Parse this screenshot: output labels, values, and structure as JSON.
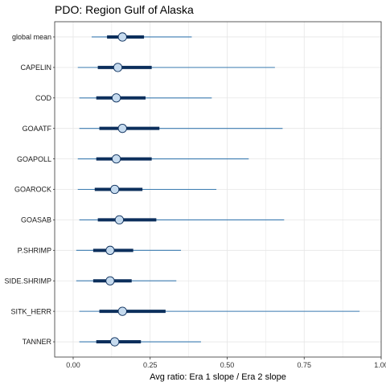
{
  "chart_data": {
    "type": "interval",
    "title": "PDO: Region Gulf of Alaska",
    "xlabel": "Avg ratio: Era 1 slope / Era 2 slope",
    "ylabel": "",
    "xlim": [
      -0.06,
      1.0
    ],
    "x_ticks": [
      0.0,
      0.25,
      0.5,
      0.75,
      1.0
    ],
    "x_tick_labels": [
      "0.00",
      "0.25",
      "0.50",
      "0.75",
      "1.00"
    ],
    "grid": true,
    "categories": [
      "global mean",
      "CAPELIN",
      "COD",
      "GOAATF",
      "GOAPOLL",
      "GOAROCK",
      "GOASAB",
      "P.SHRIMP",
      "SIDE.SHRIMP",
      "SITK_HERR",
      "TANNER"
    ],
    "series": [
      {
        "point": [
          0.16,
          0.145,
          0.14,
          0.16,
          0.14,
          0.135,
          0.15,
          0.12,
          0.12,
          0.16,
          0.135
        ],
        "inner_low": [
          0.11,
          0.08,
          0.075,
          0.085,
          0.075,
          0.07,
          0.08,
          0.065,
          0.065,
          0.085,
          0.075
        ],
        "inner_high": [
          0.23,
          0.255,
          0.235,
          0.28,
          0.255,
          0.225,
          0.27,
          0.195,
          0.19,
          0.3,
          0.22
        ],
        "outer_low": [
          0.06,
          0.015,
          0.02,
          0.02,
          0.015,
          0.015,
          0.02,
          0.01,
          0.01,
          0.02,
          0.02
        ],
        "outer_high": [
          0.385,
          0.655,
          0.45,
          0.68,
          0.57,
          0.465,
          0.685,
          0.35,
          0.335,
          0.93,
          0.415
        ]
      }
    ],
    "colors": {
      "outer": "#3b7bb0",
      "inner": "#0c2f5c",
      "point_fill": "#c6dbef",
      "point_stroke": "#0c2f5c",
      "grid": "#e6e6e6",
      "border": "#333333"
    }
  }
}
